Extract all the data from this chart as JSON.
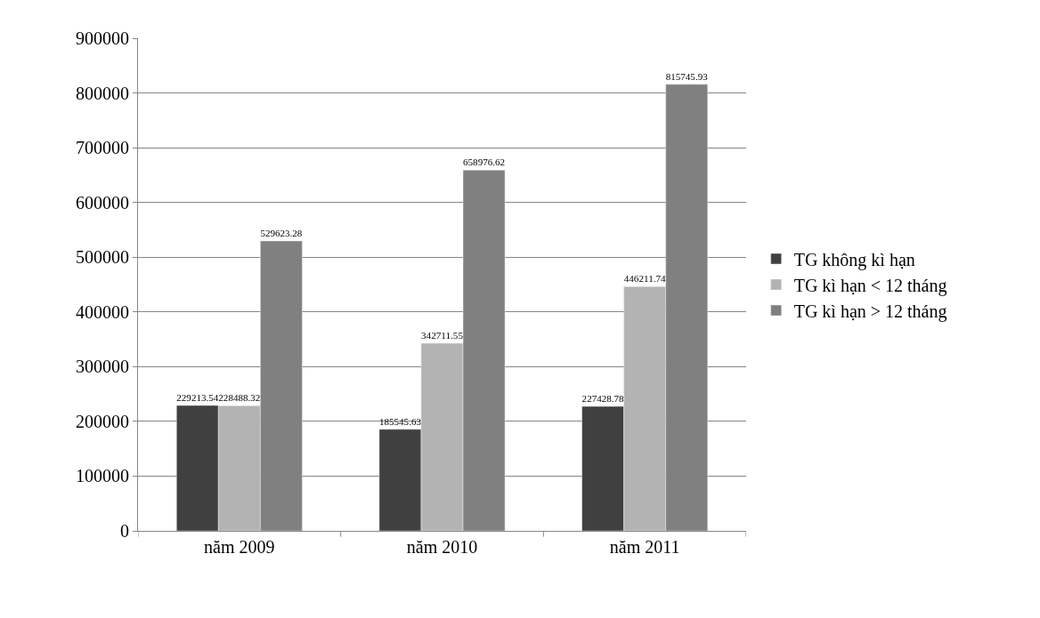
{
  "chart_data": {
    "type": "bar",
    "categories": [
      "năm 2009",
      "năm 2010",
      "năm 2011"
    ],
    "series": [
      {
        "name": "TG không kì hạn",
        "color": "#404040",
        "values": [
          229213.54,
          185545.63,
          227428.78
        ]
      },
      {
        "name": "TG kì hạn < 12 tháng",
        "color": "#b3b3b3",
        "values": [
          228488.32,
          342711.55,
          446211.74
        ]
      },
      {
        "name": "TG kì hạn > 12 tháng",
        "color": "#808080",
        "values": [
          529623.28,
          658976.62,
          815745.93
        ]
      }
    ],
    "ylim": [
      0,
      900000
    ],
    "yticks": [
      0,
      100000,
      200000,
      300000,
      400000,
      500000,
      600000,
      700000,
      800000,
      900000
    ],
    "grid": "y",
    "legend": "right",
    "data_labels": true
  }
}
